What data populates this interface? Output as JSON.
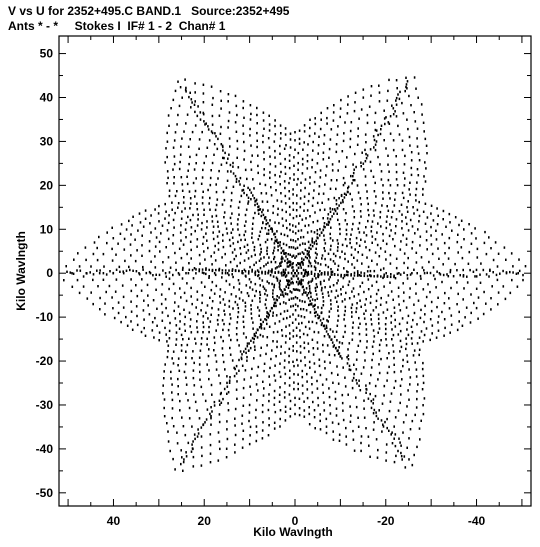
{
  "header": {
    "line1": "V vs U for 2352+495.C BAND.1   Source:2352+495",
    "line2": "Ants * - *     Stokes I  IF# 1 - 2  Chan# 1"
  },
  "chart_data": {
    "type": "scatter",
    "title": "V vs U for 2352+495.C BAND.1   Source:2352+495",
    "subtitle": "Ants * - *     Stokes I  IF# 1 - 2  Chan# 1",
    "xlabel": "Kilo Wavlngth",
    "ylabel": "Kilo Wavlngth",
    "xlim": [
      52,
      -52
    ],
    "ylim": [
      -53,
      54
    ],
    "x_inverted": true,
    "x_ticks": [
      40,
      20,
      0,
      -20,
      -40
    ],
    "y_ticks": [
      50,
      40,
      30,
      20,
      10,
      0,
      -10,
      -20,
      -30,
      -40,
      -50
    ],
    "marker_color": "#000000",
    "pattern": {
      "description_type": "radial uv-coverage tracks",
      "arms_deg": [
        0,
        60,
        120,
        180,
        240,
        300
      ],
      "arm_tip_radius": [
        52,
        51,
        52,
        52,
        51,
        52
      ],
      "arc_count": 18,
      "max_radius": 52
    }
  }
}
